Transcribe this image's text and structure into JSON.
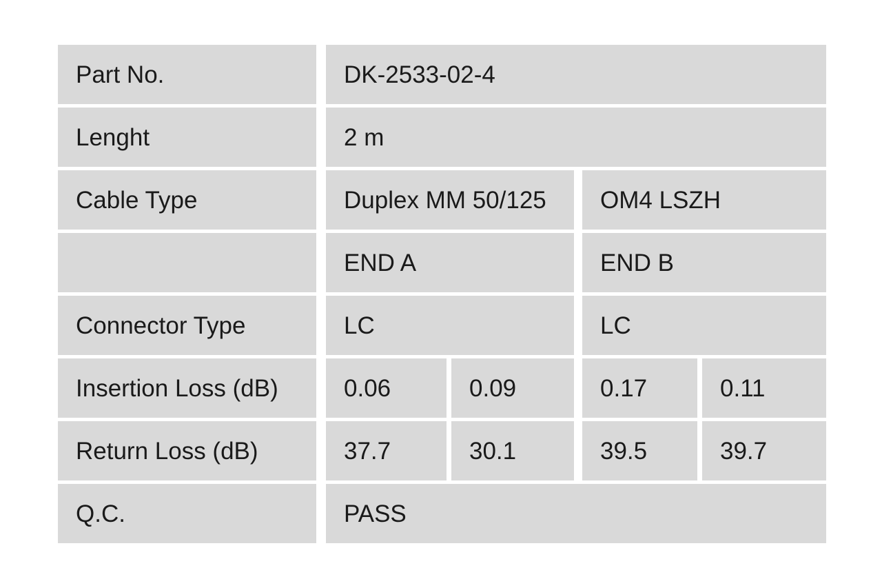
{
  "colors": {
    "page_bg": "#ffffff",
    "cell_bg": "#d9d9d9",
    "text": "#1a1a1a"
  },
  "table": {
    "rows": {
      "part_no": {
        "label": "Part No.",
        "value": "DK-2533-02-4"
      },
      "length": {
        "label": "Lenght",
        "value": "2 m"
      },
      "cable_type": {
        "label": "Cable Type",
        "end_a": "Duplex MM 50/125",
        "end_b": "OM4 LSZH"
      },
      "end_header": {
        "label": "",
        "end_a": "END A",
        "end_b": "END B"
      },
      "connector_type": {
        "label": "Connector Type",
        "end_a": "LC",
        "end_b": "LC"
      },
      "insertion_loss": {
        "label": "Insertion Loss (dB)",
        "end_a_1": "0.06",
        "end_a_2": "0.09",
        "end_b_1": "0.17",
        "end_b_2": "0.11"
      },
      "return_loss": {
        "label": "Return Loss (dB)",
        "end_a_1": "37.7",
        "end_a_2": "30.1",
        "end_b_1": "39.5",
        "end_b_2": "39.7"
      },
      "qc": {
        "label": "Q.C.",
        "value": "PASS"
      }
    }
  }
}
